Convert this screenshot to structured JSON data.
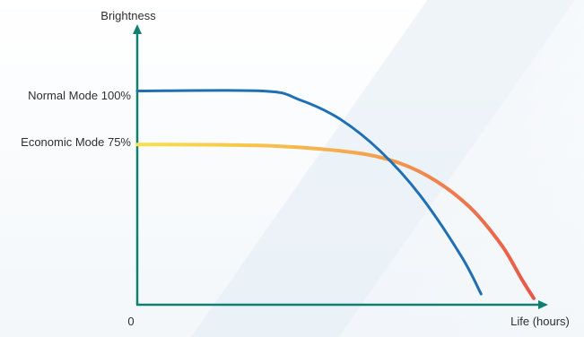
{
  "chart_data": {
    "type": "line",
    "ylabel": "Brightness",
    "xlabel": "Life (hours)",
    "x_origin_label": "0",
    "ytick_labels": [
      {
        "label": "Normal Mode 100%",
        "value": 100
      },
      {
        "label": "Economic Mode 75%",
        "value": 75
      }
    ],
    "ylim": [
      0,
      130
    ],
    "xlim": [
      0,
      100
    ],
    "series": [
      {
        "key": "normal",
        "color": "#1f6fb5",
        "points": [
          [
            0,
            100
          ],
          [
            31,
            100
          ],
          [
            40,
            96
          ],
          [
            50,
            87
          ],
          [
            60,
            72
          ],
          [
            70,
            51
          ],
          [
            80,
            23
          ],
          [
            85,
            5
          ]
        ]
      },
      {
        "key": "economic",
        "gradient": [
          "#f8e14a",
          "#f5a94f",
          "#e8564a"
        ],
        "points": [
          [
            0,
            75
          ],
          [
            30,
            74.5
          ],
          [
            50,
            72
          ],
          [
            62,
            68
          ],
          [
            72,
            60
          ],
          [
            82,
            46
          ],
          [
            90,
            28
          ],
          [
            95,
            12
          ],
          [
            98,
            3
          ]
        ]
      }
    ],
    "axis_color": "#0f7f70",
    "grid": false,
    "legend": "none"
  }
}
